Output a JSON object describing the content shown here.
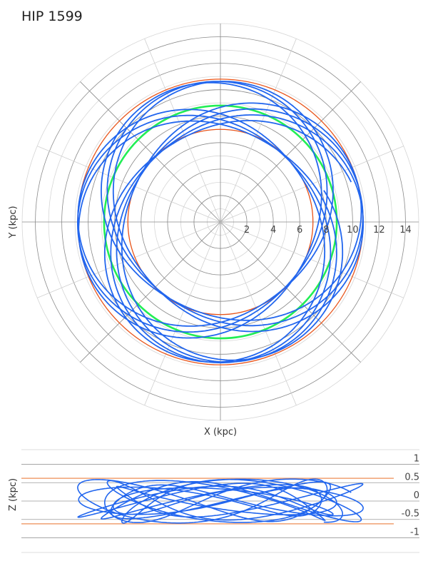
{
  "title": "HIP 1599",
  "chart_data": [
    {
      "type": "polar-orbit",
      "xlabel": "X (kpc)",
      "ylabel": "Y (kpc)",
      "r_ticks": [
        2,
        4,
        6,
        8,
        10,
        12,
        14
      ],
      "r_max": 15,
      "grid": true,
      "reference_circles": [
        {
          "r": 7.0,
          "color": "#e8541a",
          "role": "pericenter"
        },
        {
          "r": 10.8,
          "color": "#e8541a",
          "role": "apocenter"
        },
        {
          "r": 8.8,
          "color": "#22ee55",
          "role": "mean-radius"
        }
      ],
      "orbit": {
        "color": "#2266ee",
        "r_min": 7.0,
        "r_max": 10.8,
        "loops": 10
      }
    },
    {
      "type": "line",
      "xlabel": "",
      "ylabel": "Z (kpc)",
      "y_ticks": [
        1,
        0.5,
        0,
        -0.5,
        -1
      ],
      "y_tick_labels": [
        "1",
        "0.5",
        "0",
        "-0.5",
        "-1"
      ],
      "ylim": [
        -1.4,
        1.4
      ],
      "reference_lines": [
        {
          "y": 0.62,
          "color": "#f0a070"
        },
        {
          "y": -0.62,
          "color": "#f0a070"
        }
      ],
      "orbit": {
        "color": "#2266ee",
        "r_min": 7.0,
        "r_max": 10.8,
        "z_amp": 0.6
      }
    }
  ]
}
